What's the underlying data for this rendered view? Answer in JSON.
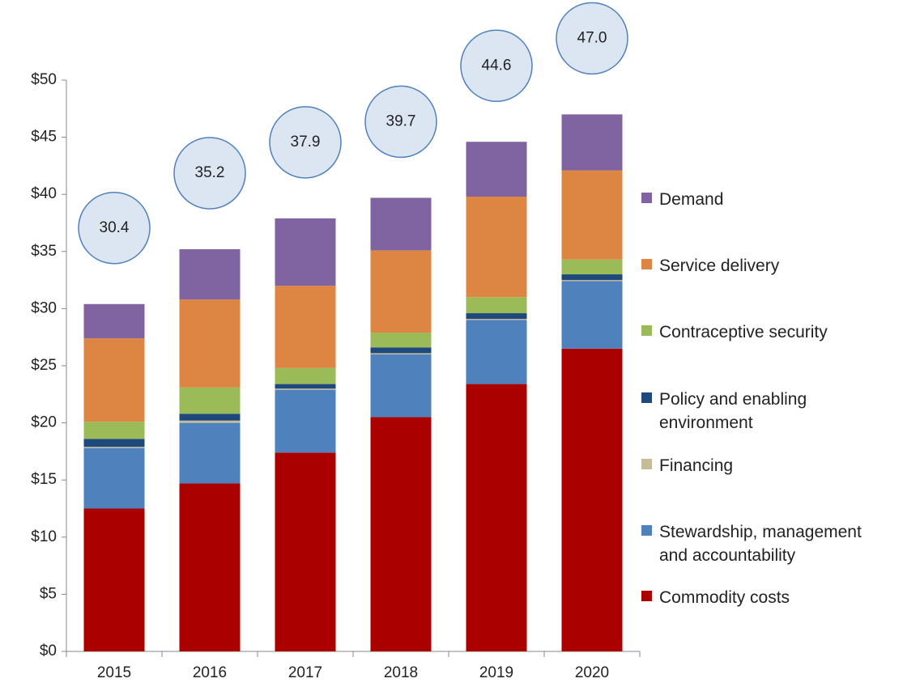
{
  "chart_data": {
    "type": "stacked-bar",
    "categories": [
      "2015",
      "2016",
      "2017",
      "2018",
      "2019",
      "2020"
    ],
    "series": [
      {
        "name": "Commodity costs",
        "color": "#aa0000",
        "values": [
          12.5,
          14.7,
          17.4,
          20.5,
          23.4,
          26.5
        ]
      },
      {
        "name": "Stewardship, management and accountability",
        "color": "#4f81bd",
        "values": [
          5.3,
          5.3,
          5.5,
          5.5,
          5.6,
          5.9
        ]
      },
      {
        "name": "Financing",
        "color": "#c4bd97",
        "values": [
          0.1,
          0.2,
          0.1,
          0.1,
          0.1,
          0.1
        ]
      },
      {
        "name": "Policy and enabling environment",
        "color": "#1f497d",
        "values": [
          0.7,
          0.6,
          0.4,
          0.5,
          0.5,
          0.5
        ]
      },
      {
        "name": "Contraceptive security",
        "color": "#9bbb59",
        "values": [
          1.5,
          2.3,
          1.4,
          1.3,
          1.4,
          1.3
        ]
      },
      {
        "name": "Service delivery",
        "color": "#dd8543",
        "values": [
          7.3,
          7.7,
          7.2,
          7.2,
          8.8,
          7.8
        ]
      },
      {
        "name": "Demand",
        "color": "#8064a2",
        "values": [
          3.0,
          4.4,
          5.9,
          4.6,
          4.8,
          4.9
        ]
      }
    ],
    "totals": {
      "values": [
        30.4,
        35.2,
        37.9,
        39.7,
        44.6,
        47.0
      ],
      "value_labels": [
        "30.4",
        "35.2",
        "37.9",
        "39.7",
        "44.6",
        "47.0"
      ]
    },
    "ylim": [
      0,
      50
    ],
    "yticks": [
      {
        "value": 0,
        "label": "$0"
      },
      {
        "value": 5,
        "label": "$5"
      },
      {
        "value": 10,
        "label": "$10"
      },
      {
        "value": 15,
        "label": "$15"
      },
      {
        "value": 20,
        "label": "$20"
      },
      {
        "value": 25,
        "label": "$25"
      },
      {
        "value": 30,
        "label": "$30"
      },
      {
        "value": 35,
        "label": "$35"
      },
      {
        "value": 40,
        "label": "$40"
      },
      {
        "value": 45,
        "label": "$45"
      },
      {
        "value": 50,
        "label": "$50"
      }
    ],
    "legend": "right"
  }
}
